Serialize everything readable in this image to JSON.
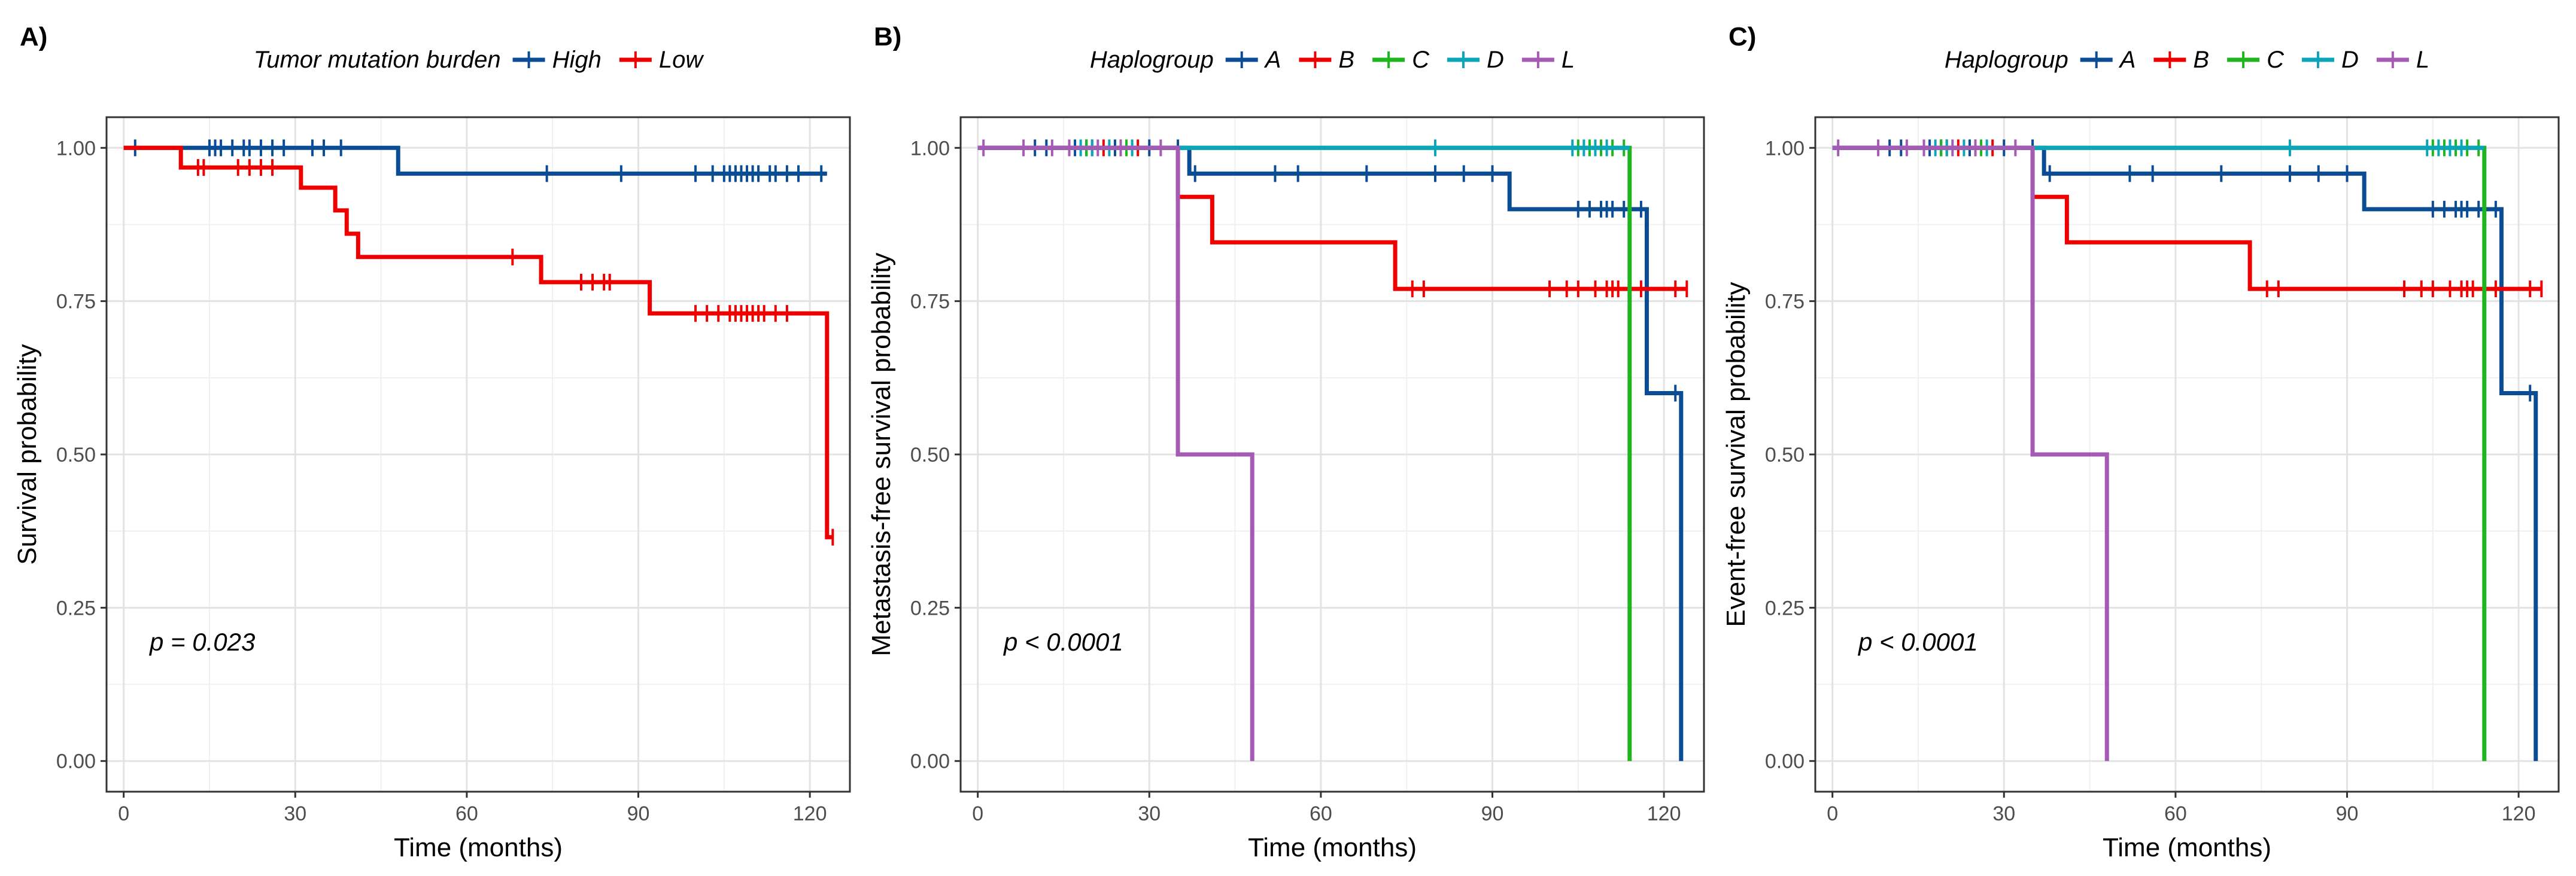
{
  "chart_data": [
    {
      "type": "line",
      "subtype": "kaplan-meier",
      "panel_label": "A)",
      "legend_title": "Tumor mutation burden",
      "xlabel": "Time (months)",
      "ylabel": "Survival probability",
      "xlim": [
        -3,
        127
      ],
      "ylim": [
        -0.05,
        1.05
      ],
      "x_ticks": [
        0,
        30,
        60,
        90,
        120
      ],
      "y_ticks": [
        "0.00",
        "0.25",
        "0.50",
        "0.75",
        "1.00"
      ],
      "y_tick_values": [
        0,
        0.25,
        0.5,
        0.75,
        1.0
      ],
      "pvalue": "p = 0.023",
      "series": [
        {
          "name": "High",
          "color": "#0b4d94",
          "steps": [
            [
              0,
              1.0
            ],
            [
              48,
              0.958
            ],
            [
              123,
              0.958
            ]
          ],
          "censor": [
            [
              2,
              1
            ],
            [
              15,
              1
            ],
            [
              16,
              1
            ],
            [
              17,
              1
            ],
            [
              19,
              1
            ],
            [
              21,
              1
            ],
            [
              22,
              1
            ],
            [
              24,
              1
            ],
            [
              26,
              1
            ],
            [
              28,
              1
            ],
            [
              33,
              1
            ],
            [
              35,
              1
            ],
            [
              38,
              1
            ],
            [
              74,
              0.958
            ],
            [
              87,
              0.958
            ],
            [
              100,
              0.958
            ],
            [
              103,
              0.958
            ],
            [
              105,
              0.958
            ],
            [
              106,
              0.958
            ],
            [
              107,
              0.958
            ],
            [
              108,
              0.958
            ],
            [
              109,
              0.958
            ],
            [
              110,
              0.958
            ],
            [
              111,
              0.958
            ],
            [
              113,
              0.958
            ],
            [
              114,
              0.958
            ],
            [
              116,
              0.958
            ],
            [
              118,
              0.958
            ],
            [
              122,
              0.958
            ]
          ]
        },
        {
          "name": "Low",
          "color": "#ee0000",
          "steps": [
            [
              0,
              1.0
            ],
            [
              10,
              0.968
            ],
            [
              31,
              0.935
            ],
            [
              37,
              0.898
            ],
            [
              39,
              0.86
            ],
            [
              41,
              0.822
            ],
            [
              73,
              0.781
            ],
            [
              92,
              0.73
            ],
            [
              123,
              0.365
            ],
            [
              124,
              0.365
            ]
          ],
          "censor": [
            [
              13,
              0.968
            ],
            [
              14,
              0.968
            ],
            [
              20,
              0.968
            ],
            [
              22,
              0.968
            ],
            [
              24,
              0.968
            ],
            [
              26,
              0.968
            ],
            [
              68,
              0.822
            ],
            [
              80,
              0.781
            ],
            [
              82,
              0.781
            ],
            [
              84,
              0.781
            ],
            [
              85,
              0.781
            ],
            [
              100,
              0.73
            ],
            [
              102,
              0.73
            ],
            [
              104,
              0.73
            ],
            [
              106,
              0.73
            ],
            [
              107,
              0.73
            ],
            [
              108,
              0.73
            ],
            [
              109,
              0.73
            ],
            [
              110,
              0.73
            ],
            [
              111,
              0.73
            ],
            [
              112,
              0.73
            ],
            [
              114,
              0.73
            ],
            [
              116,
              0.73
            ],
            [
              124,
              0.365
            ]
          ]
        }
      ]
    },
    {
      "type": "line",
      "subtype": "kaplan-meier",
      "panel_label": "B)",
      "legend_title": "Haplogroup",
      "xlabel": "Time (months)",
      "ylabel": "Metastasis-free survival probability",
      "xlim": [
        -3,
        127
      ],
      "ylim": [
        -0.05,
        1.05
      ],
      "x_ticks": [
        0,
        30,
        60,
        90,
        120
      ],
      "y_ticks": [
        "0.00",
        "0.25",
        "0.50",
        "0.75",
        "1.00"
      ],
      "y_tick_values": [
        0,
        0.25,
        0.5,
        0.75,
        1.0
      ],
      "pvalue": "p < 0.0001",
      "series": [
        {
          "name": "A",
          "color": "#0b4d94",
          "steps": [
            [
              0,
              1.0
            ],
            [
              37,
              0.958
            ],
            [
              93,
              0.9
            ],
            [
              117,
              0.6
            ],
            [
              123,
              0.0
            ]
          ],
          "censor": [
            [
              10,
              1
            ],
            [
              12,
              1
            ],
            [
              17,
              1
            ],
            [
              19,
              1
            ],
            [
              24,
              1
            ],
            [
              30,
              1
            ],
            [
              35,
              1
            ],
            [
              38,
              0.958
            ],
            [
              52,
              0.958
            ],
            [
              56,
              0.958
            ],
            [
              68,
              0.958
            ],
            [
              80,
              0.958
            ],
            [
              85,
              0.958
            ],
            [
              90,
              0.958
            ],
            [
              105,
              0.9
            ],
            [
              107,
              0.9
            ],
            [
              109,
              0.9
            ],
            [
              110,
              0.9
            ],
            [
              111,
              0.9
            ],
            [
              113,
              0.9
            ],
            [
              114,
              0.9
            ],
            [
              116,
              0.9
            ],
            [
              122,
              0.6
            ]
          ]
        },
        {
          "name": "B",
          "color": "#ee0000",
          "steps": [
            [
              0,
              1.0
            ],
            [
              35,
              0.92
            ],
            [
              41,
              0.846
            ],
            [
              73,
              0.77
            ],
            [
              124,
              0.77
            ]
          ],
          "censor": [
            [
              20,
              1
            ],
            [
              22,
              1
            ],
            [
              25,
              1
            ],
            [
              28,
              1
            ],
            [
              76,
              0.77
            ],
            [
              78,
              0.77
            ],
            [
              100,
              0.77
            ],
            [
              103,
              0.77
            ],
            [
              105,
              0.77
            ],
            [
              108,
              0.77
            ],
            [
              110,
              0.77
            ],
            [
              111,
              0.77
            ],
            [
              112,
              0.77
            ],
            [
              116,
              0.77
            ],
            [
              122,
              0.77
            ],
            [
              124,
              0.77
            ]
          ]
        },
        {
          "name": "C",
          "color": "#1eb51e",
          "steps": [
            [
              0,
              1.0
            ],
            [
              114,
              1.0
            ],
            [
              114,
              0.0
            ]
          ],
          "censor": [
            [
              19,
              1
            ],
            [
              26,
              1
            ],
            [
              105,
              1
            ],
            [
              107,
              1
            ],
            [
              109,
              1
            ],
            [
              111,
              1
            ],
            [
              113,
              1
            ]
          ]
        },
        {
          "name": "D",
          "color": "#0aa5b8",
          "steps": [
            [
              0,
              1.0
            ],
            [
              114,
              1.0
            ]
          ],
          "censor": [
            [
              18,
              1
            ],
            [
              20,
              1
            ],
            [
              23,
              1
            ],
            [
              27,
              1
            ],
            [
              80,
              1
            ],
            [
              104,
              1
            ],
            [
              106,
              1
            ],
            [
              108,
              1
            ],
            [
              110,
              1
            ]
          ]
        },
        {
          "name": "L",
          "color": "#a55ab4",
          "steps": [
            [
              0,
              1.0
            ],
            [
              35,
              0.5
            ],
            [
              48,
              0.0
            ]
          ],
          "censor": [
            [
              1,
              1
            ],
            [
              8,
              1
            ],
            [
              13,
              1
            ],
            [
              16,
              1
            ],
            [
              21,
              1
            ],
            [
              25,
              1
            ],
            [
              32,
              1
            ]
          ]
        }
      ]
    },
    {
      "type": "line",
      "subtype": "kaplan-meier",
      "panel_label": "C)",
      "legend_title": "Haplogroup",
      "xlabel": "Time (months)",
      "ylabel": "Event-free survival probability",
      "xlim": [
        -3,
        127
      ],
      "ylim": [
        -0.05,
        1.05
      ],
      "x_ticks": [
        0,
        30,
        60,
        90,
        120
      ],
      "y_ticks": [
        "0.00",
        "0.25",
        "0.50",
        "0.75",
        "1.00"
      ],
      "y_tick_values": [
        0,
        0.25,
        0.5,
        0.75,
        1.0
      ],
      "pvalue": "p < 0.0001",
      "series": [
        {
          "name": "A",
          "color": "#0b4d94",
          "steps": [
            [
              0,
              1.0
            ],
            [
              37,
              0.958
            ],
            [
              93,
              0.9
            ],
            [
              117,
              0.6
            ],
            [
              123,
              0.0
            ]
          ],
          "censor": [
            [
              10,
              1
            ],
            [
              12,
              1
            ],
            [
              17,
              1
            ],
            [
              19,
              1
            ],
            [
              24,
              1
            ],
            [
              30,
              1
            ],
            [
              35,
              1
            ],
            [
              38,
              0.958
            ],
            [
              52,
              0.958
            ],
            [
              56,
              0.958
            ],
            [
              68,
              0.958
            ],
            [
              80,
              0.958
            ],
            [
              85,
              0.958
            ],
            [
              90,
              0.958
            ],
            [
              105,
              0.9
            ],
            [
              107,
              0.9
            ],
            [
              109,
              0.9
            ],
            [
              110,
              0.9
            ],
            [
              111,
              0.9
            ],
            [
              113,
              0.9
            ],
            [
              114,
              0.9
            ],
            [
              116,
              0.9
            ],
            [
              122,
              0.6
            ]
          ]
        },
        {
          "name": "B",
          "color": "#ee0000",
          "steps": [
            [
              0,
              1.0
            ],
            [
              35,
              0.92
            ],
            [
              41,
              0.846
            ],
            [
              73,
              0.77
            ],
            [
              124,
              0.77
            ]
          ],
          "censor": [
            [
              20,
              1
            ],
            [
              22,
              1
            ],
            [
              25,
              1
            ],
            [
              28,
              1
            ],
            [
              76,
              0.77
            ],
            [
              78,
              0.77
            ],
            [
              100,
              0.77
            ],
            [
              103,
              0.77
            ],
            [
              105,
              0.77
            ],
            [
              108,
              0.77
            ],
            [
              110,
              0.77
            ],
            [
              111,
              0.77
            ],
            [
              112,
              0.77
            ],
            [
              116,
              0.77
            ],
            [
              122,
              0.77
            ],
            [
              124,
              0.77
            ]
          ]
        },
        {
          "name": "C",
          "color": "#1eb51e",
          "steps": [
            [
              0,
              1.0
            ],
            [
              114,
              1.0
            ],
            [
              114,
              0.0
            ]
          ],
          "censor": [
            [
              19,
              1
            ],
            [
              26,
              1
            ],
            [
              105,
              1
            ],
            [
              107,
              1
            ],
            [
              109,
              1
            ],
            [
              111,
              1
            ],
            [
              113,
              1
            ]
          ]
        },
        {
          "name": "D",
          "color": "#0aa5b8",
          "steps": [
            [
              0,
              1.0
            ],
            [
              114,
              1.0
            ]
          ],
          "censor": [
            [
              18,
              1
            ],
            [
              20,
              1
            ],
            [
              23,
              1
            ],
            [
              27,
              1
            ],
            [
              80,
              1
            ],
            [
              104,
              1
            ],
            [
              106,
              1
            ],
            [
              108,
              1
            ],
            [
              110,
              1
            ]
          ]
        },
        {
          "name": "L",
          "color": "#a55ab4",
          "steps": [
            [
              0,
              1.0
            ],
            [
              35,
              0.5
            ],
            [
              48,
              0.0
            ]
          ],
          "censor": [
            [
              1,
              1
            ],
            [
              8,
              1
            ],
            [
              13,
              1
            ],
            [
              16,
              1
            ],
            [
              21,
              1
            ],
            [
              25,
              1
            ],
            [
              32,
              1
            ]
          ]
        }
      ]
    }
  ]
}
